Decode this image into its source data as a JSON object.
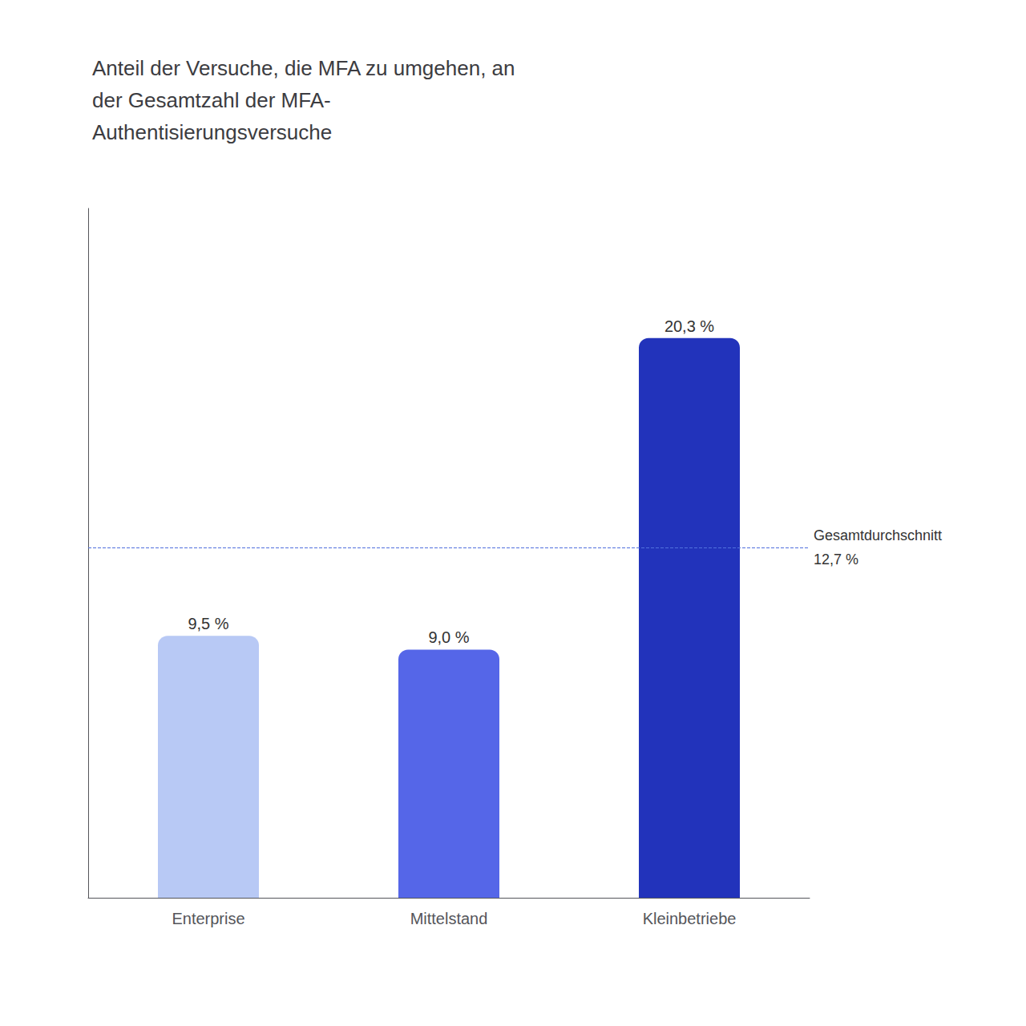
{
  "chart_data": {
    "type": "bar",
    "title": "Anteil der Versuche, die MFA zu umgehen, an\nder Gesamtzahl der MFA-\nAuthentisierungsversuche",
    "categories": [
      "Enterprise",
      "Mittelstand",
      "Kleinbetriebe"
    ],
    "values": [
      9.5,
      9.0,
      20.3
    ],
    "value_labels": [
      "9,5 %",
      "9,0 %",
      "20,3 %"
    ],
    "data_labels": true,
    "colors": [
      "#b8c9f5",
      "#5566e8",
      "#2233bb"
    ],
    "average_line": {
      "value": 12.7,
      "label": "Gesamtdurchschnitt",
      "value_label": "12,7 %"
    },
    "ylim": [
      0,
      25
    ],
    "grid": false,
    "tick_labels": "x"
  }
}
